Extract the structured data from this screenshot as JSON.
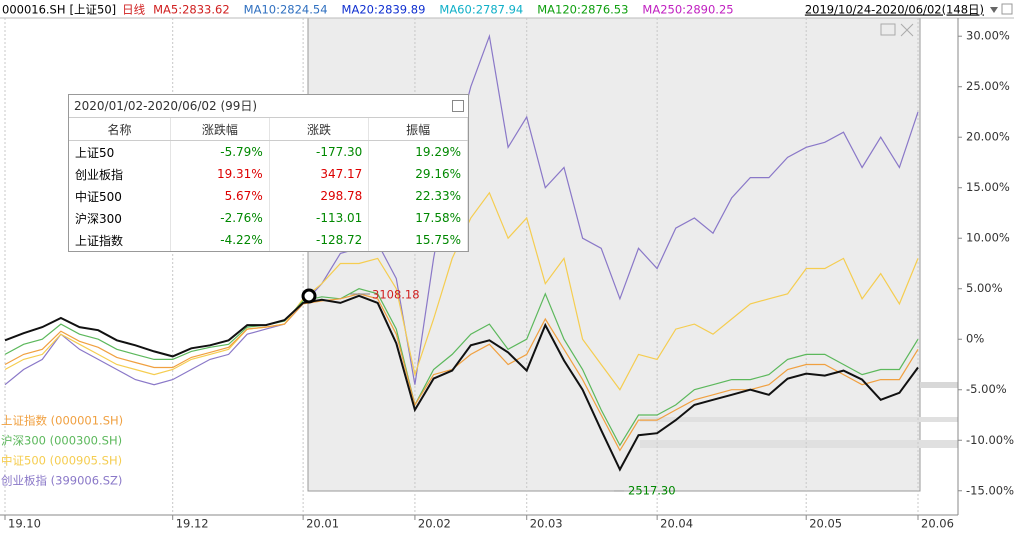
{
  "header": {
    "code": "000016.SH",
    "name": "[上证50]",
    "period": "日线",
    "mas": [
      {
        "text": "MA5:2833.62",
        "color": "#d02020"
      },
      {
        "text": "MA10:2824.54",
        "color": "#3070c0"
      },
      {
        "text": "MA20:2839.89",
        "color": "#1030d0"
      },
      {
        "text": "MA60:2787.94",
        "color": "#10b0c8"
      },
      {
        "text": "MA120:2876.53",
        "color": "#10a010"
      },
      {
        "text": "MA250:2890.25",
        "color": "#c020c0"
      }
    ],
    "range": "2019/10/24-2020/06/02(148日)"
  },
  "stats": {
    "title": "2020/01/02-2020/06/02 (99日)",
    "columns": [
      "名称",
      "涨跌幅",
      "涨跌",
      "振幅"
    ],
    "rows": [
      [
        "上证50",
        "-5.79%",
        "-177.30",
        "19.29%"
      ],
      [
        "创业板指",
        "19.31%",
        "347.17",
        "29.16%"
      ],
      [
        "中证500",
        "5.67%",
        "298.78",
        "22.33%"
      ],
      [
        "沪深300",
        "-2.76%",
        "-113.01",
        "17.58%"
      ],
      [
        "上证指数",
        "-4.22%",
        "-128.72",
        "15.75%"
      ]
    ]
  },
  "chart_data": {
    "type": "line",
    "categories": [
      "19.10",
      null,
      null,
      null,
      null,
      null,
      null,
      null,
      null,
      "19.12",
      null,
      null,
      null,
      null,
      null,
      null,
      "20.01",
      null,
      null,
      null,
      null,
      null,
      "20.02",
      null,
      null,
      null,
      null,
      null,
      "20.03",
      null,
      null,
      null,
      null,
      null,
      null,
      "20.04",
      null,
      null,
      null,
      null,
      null,
      null,
      null,
      "20.05",
      null,
      null,
      null,
      null,
      null,
      "20.06"
    ],
    "ylim": [
      -17.4,
      32.1
    ],
    "yticks": [
      {
        "value": 30,
        "label": "30.00%"
      },
      {
        "value": 25,
        "label": "25.00%"
      },
      {
        "value": 20,
        "label": "20.00%"
      },
      {
        "value": 15,
        "label": "15.00%"
      },
      {
        "value": 10,
        "label": "10.00%"
      },
      {
        "value": 5,
        "label": "5.00%"
      },
      {
        "value": 0,
        "label": "0%"
      },
      {
        "value": -5,
        "label": "-5.00%"
      },
      {
        "value": -10,
        "label": "-10.00%"
      },
      {
        "value": -15,
        "label": "-15.00%"
      }
    ],
    "xgrid": true,
    "annotations": [
      "3108.18",
      "2517.30"
    ],
    "series": [
      {
        "name": "创业板指 (399006.SZ)",
        "color": "#8a78c8",
        "values": [
          -4.5,
          -3.0,
          -2.0,
          0.5,
          -1.0,
          -2.0,
          -3.0,
          -4.0,
          -4.5,
          -4.0,
          -3.0,
          -2.0,
          -1.5,
          0.5,
          1.0,
          1.5,
          3.5,
          5.5,
          8.5,
          9.0,
          9.5,
          6.0,
          -4.5,
          8.0,
          18.0,
          25.0,
          30.0,
          19.0,
          22.0,
          15.0,
          17.0,
          10.0,
          9.0,
          4.0,
          9.0,
          7.0,
          11.0,
          12.0,
          10.5,
          14.0,
          16.0,
          16.0,
          18.0,
          19.0,
          19.5,
          20.5,
          17.0,
          20.0,
          17.0,
          22.5
        ]
      },
      {
        "name": "中证500 (000905.SH)",
        "color": "#f5cd50",
        "values": [
          -3,
          -2,
          -1.5,
          0.5,
          -0.5,
          -1.5,
          -2.5,
          -3,
          -3.5,
          -3,
          -2,
          -1.5,
          -1,
          1,
          1.2,
          1.5,
          4,
          5.5,
          7.5,
          7.5,
          8,
          5,
          -3.5,
          2,
          8,
          12,
          14.5,
          10,
          12,
          5.5,
          8,
          0,
          -2.5,
          -5,
          -1.5,
          -2,
          1,
          1.5,
          0.5,
          2,
          3.5,
          4,
          4.5,
          7,
          7,
          8,
          4,
          6.5,
          3.5,
          8
        ]
      },
      {
        "name": "沪深300 (000300.SH)",
        "color": "#5cb85c",
        "values": [
          -1.5,
          -0.5,
          0,
          1.5,
          0.5,
          0,
          -1,
          -1.5,
          -2,
          -2,
          -1.2,
          -0.8,
          -0.5,
          1.2,
          1.4,
          1.8,
          3.8,
          4.2,
          4,
          5,
          4.5,
          1,
          -6.5,
          -3,
          -1.5,
          0.5,
          1.5,
          -1,
          0,
          4.5,
          0,
          -3,
          -7,
          -10.5,
          -7.5,
          -7.5,
          -6.5,
          -5,
          -4.5,
          -4,
          -4,
          -3.5,
          -2,
          -1.5,
          -1.5,
          -2.5,
          -3.5,
          -3,
          -3,
          0
        ]
      },
      {
        "name": "上证指数 (000001.SH)",
        "color": "#f0a040",
        "values": [
          -2.5,
          -1.5,
          -1,
          0.8,
          -0.2,
          -0.8,
          -1.8,
          -2.3,
          -2.8,
          -2.8,
          -1.8,
          -1.3,
          -0.8,
          1,
          1.2,
          1.5,
          3.5,
          3.8,
          4,
          4.5,
          4,
          0.5,
          -6.5,
          -3.5,
          -3,
          -1.5,
          -0.5,
          -2.5,
          -1.5,
          2,
          -1,
          -4,
          -7.5,
          -11,
          -8,
          -8,
          -7,
          -6,
          -5.5,
          -5,
          -5,
          -4.5,
          -3,
          -2.5,
          -2.5,
          -3.5,
          -4.5,
          -4,
          -4,
          -1
        ]
      },
      {
        "color": "#111111",
        "values": [
          -0.1,
          0.6,
          1.2,
          2.1,
          1.2,
          0.9,
          -0.1,
          -0.6,
          -1.2,
          -1.7,
          -0.9,
          -0.6,
          -0.1,
          1.4,
          1.4,
          1.9,
          3.6,
          3.9,
          3.6,
          4.3,
          3.6,
          -0.4,
          -7.0,
          -3.9,
          -3.1,
          -0.6,
          -0.1,
          -1.3,
          -3.1,
          1.4,
          -2.1,
          -5.0,
          -9.0,
          -12.9,
          -9.5,
          -9.3,
          -8.0,
          -6.5,
          -6.0,
          -5.5,
          -5.0,
          -5.5,
          -3.9,
          -3.4,
          -3.6,
          -3.1,
          -4.0,
          -6.0,
          -5.3,
          -2.8
        ]
      }
    ]
  }
}
